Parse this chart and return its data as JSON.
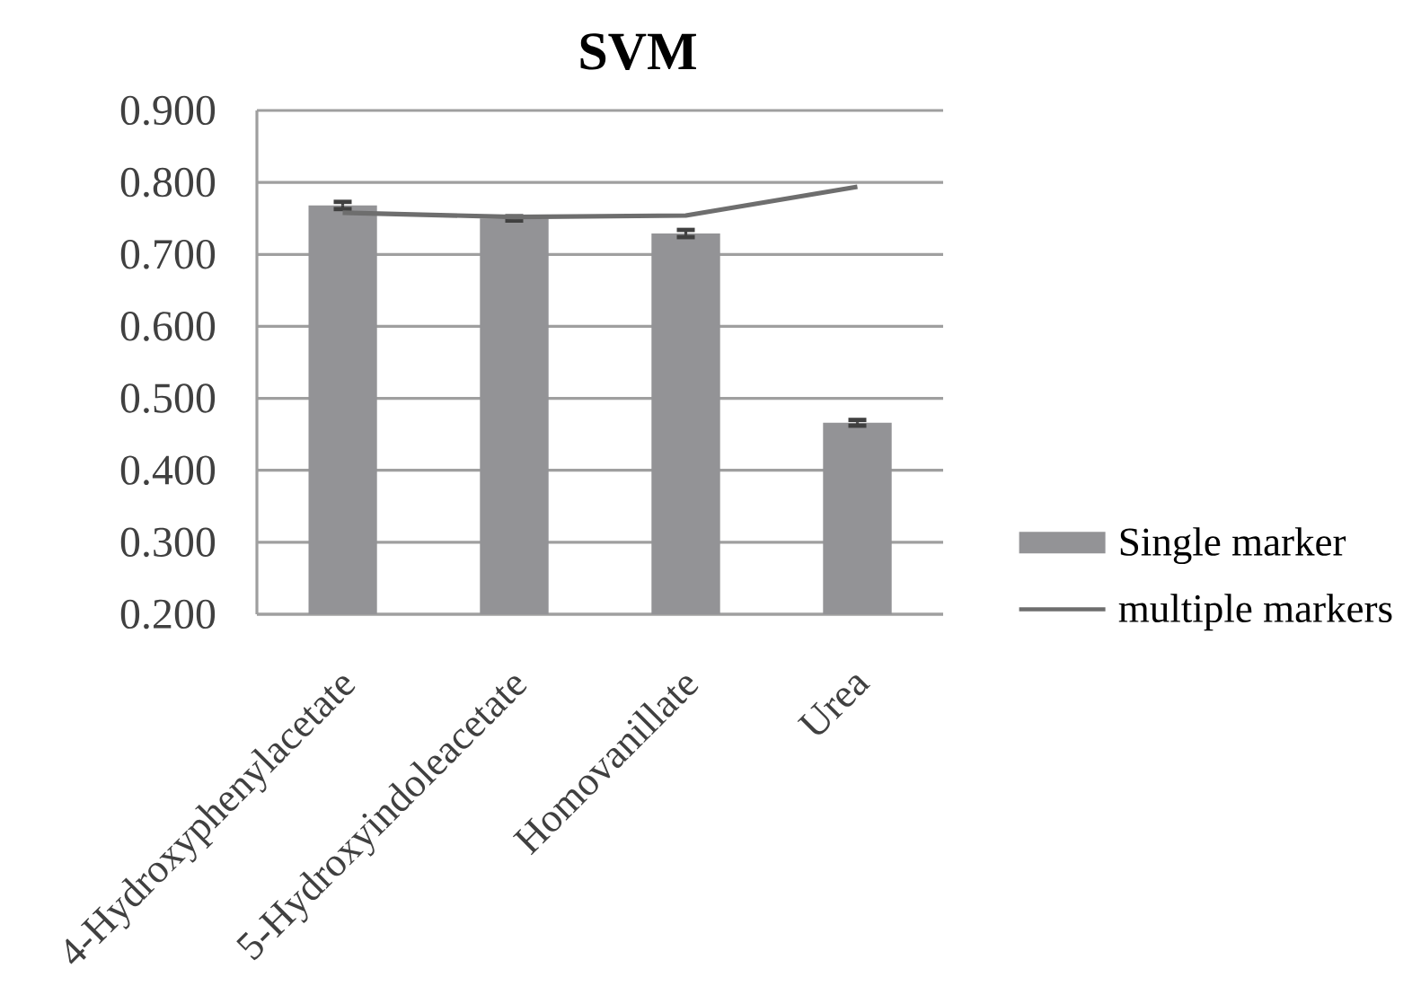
{
  "chart_data": {
    "type": "bar",
    "title": "SVM",
    "categories": [
      "4-Hydroxyphenylacetate",
      "5-Hydroxyindoleacetate",
      "Homovanillate",
      "Urea"
    ],
    "series": [
      {
        "name": "Single marker",
        "color": "#939396",
        "values": [
          0.768,
          0.75,
          0.729,
          0.466
        ],
        "errors": [
          0.005,
          0.003,
          0.005,
          0.004
        ]
      },
      {
        "name": "multiple markers",
        "type": "line",
        "color": "#6e6e6e",
        "values": [
          0.758,
          0.752,
          0.754,
          0.794
        ]
      }
    ],
    "ylim": [
      0.2,
      0.9
    ],
    "yticks": [
      {
        "value": 0.2,
        "label": "0.200"
      },
      {
        "value": 0.3,
        "label": "0.300"
      },
      {
        "value": 0.4,
        "label": "0.400"
      },
      {
        "value": 0.5,
        "label": "0.500"
      },
      {
        "value": 0.6,
        "label": "0.600"
      },
      {
        "value": 0.7,
        "label": "0.700"
      },
      {
        "value": 0.8,
        "label": "0.800"
      },
      {
        "value": 0.9,
        "label": "0.900"
      }
    ],
    "grid": "y",
    "legend": "right"
  }
}
